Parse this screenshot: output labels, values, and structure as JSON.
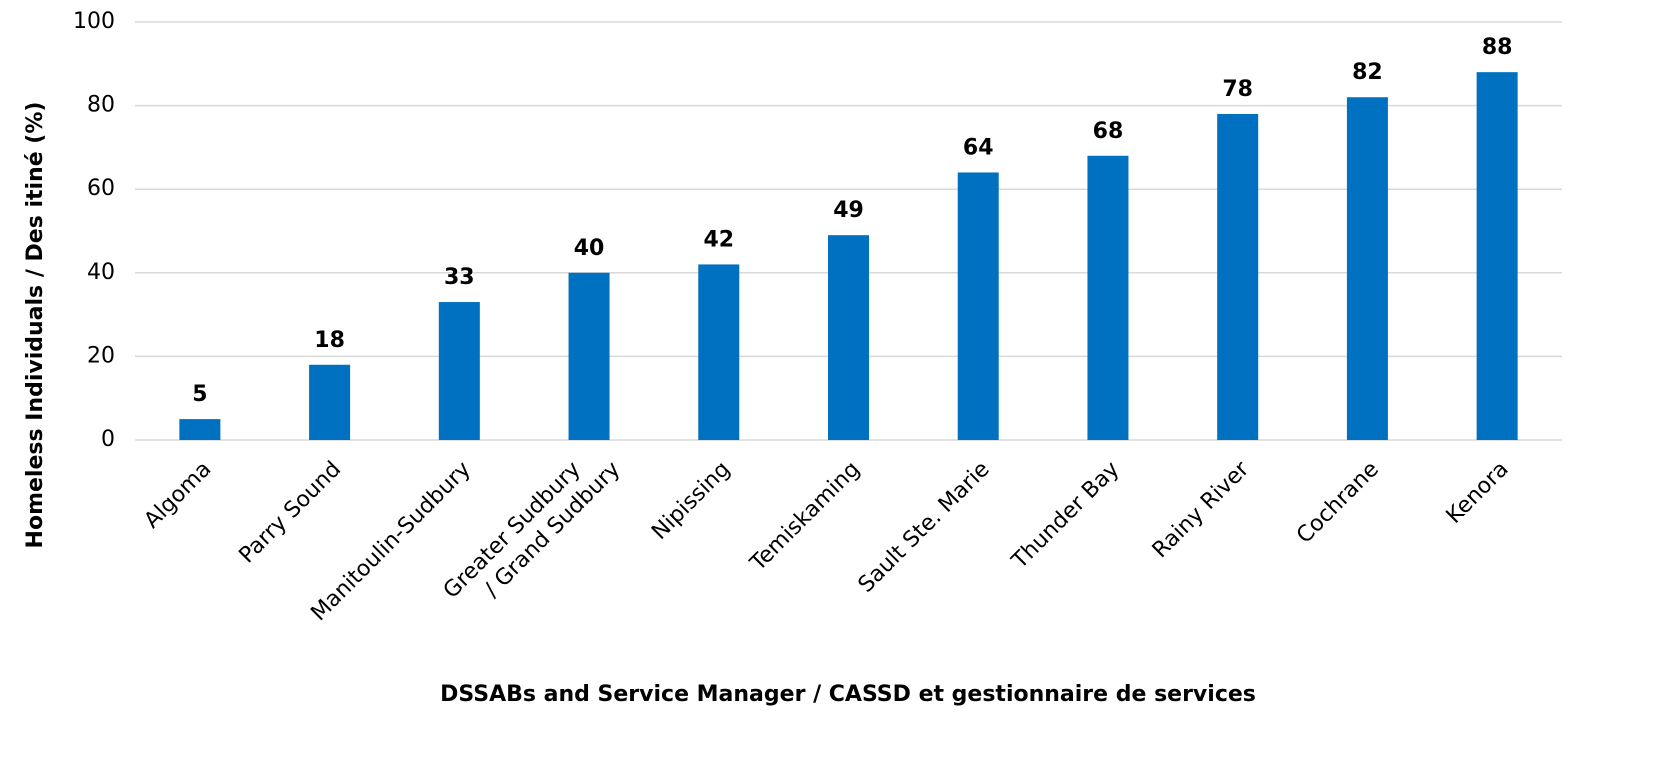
{
  "chart_data": {
    "type": "bar",
    "x_label": "DSSABs and Service Manager / CASSD et gestionnaire de services",
    "y_label": "Homeless Individuals / Des itiné (%)",
    "categories": [
      "Algoma",
      "Parry Sound",
      "Manitoulin-Sudbury",
      "Greater Sudbury / Grand Sudbury",
      "Nipissing",
      "Temiskaming",
      "Sault Ste. Marie",
      "Thunder Bay",
      "Rainy River",
      "Cochrane",
      "Kenora"
    ],
    "values": [
      5,
      18,
      33,
      40,
      42,
      49,
      64,
      68,
      78,
      82,
      88
    ],
    "color": "#0070c0",
    "ylim": [
      0,
      100
    ],
    "yticks": [
      0,
      20,
      40,
      60,
      80,
      100
    ],
    "grid": true
  }
}
